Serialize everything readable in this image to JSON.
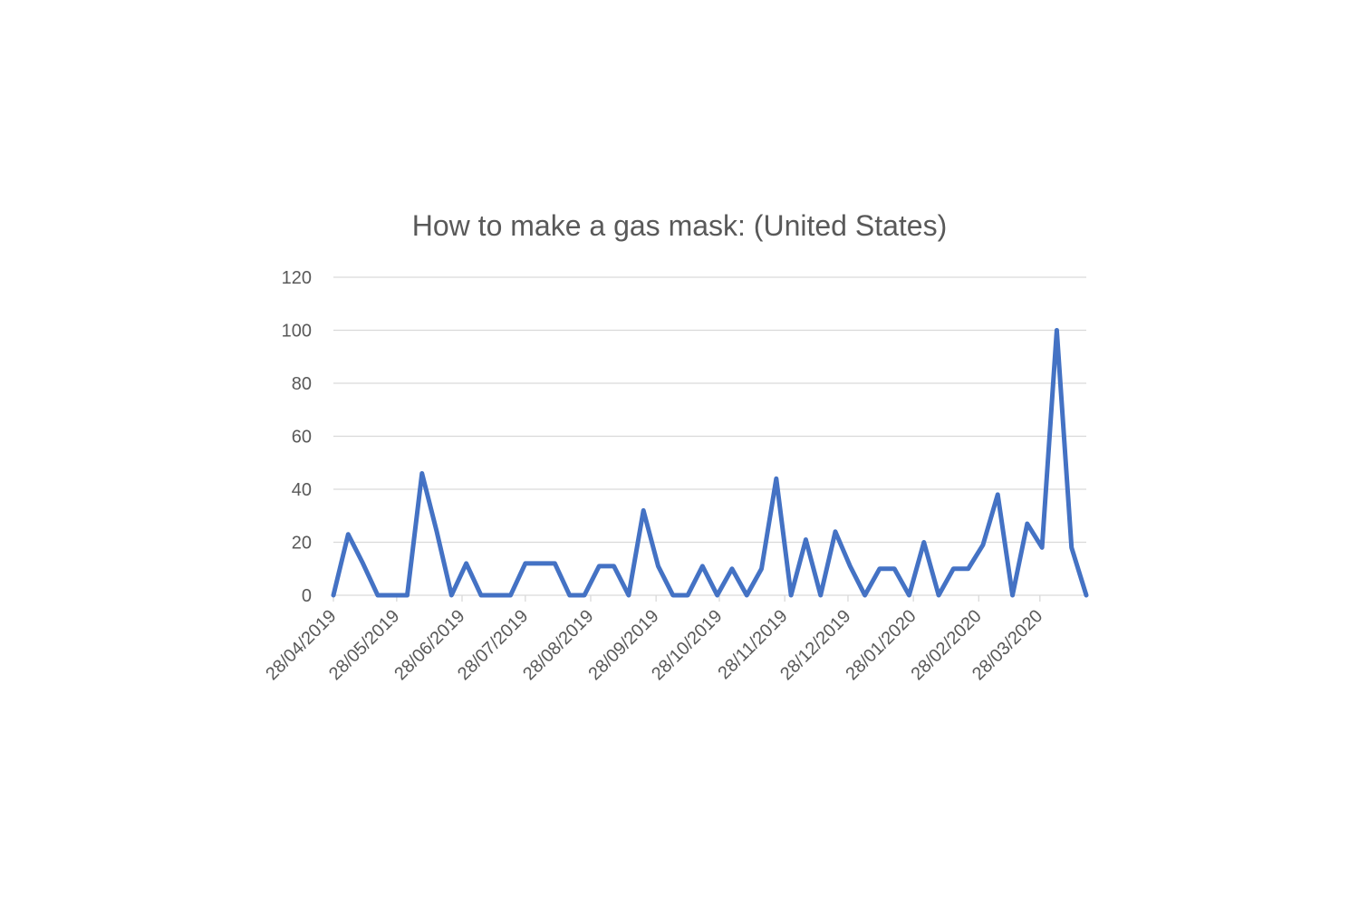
{
  "chart_data": {
    "type": "line",
    "title": "How to make a gas mask: (United States)",
    "xlabel": "",
    "ylabel": "",
    "ylim": [
      0,
      120
    ],
    "y_ticks": [
      "0",
      "20",
      "40",
      "60",
      "80",
      "100",
      "120"
    ],
    "grid": true,
    "legend": "none",
    "line_color": "#4472c4",
    "x_tick_labels": [
      "28/04/2019",
      "28/05/2019",
      "28/06/2019",
      "28/07/2019",
      "28/08/2019",
      "28/09/2019",
      "28/10/2019",
      "28/11/2019",
      "28/12/2019",
      "28/01/2020",
      "28/02/2020",
      "28/03/2020"
    ],
    "x_range": [
      "2019-04-28",
      "2020-04-19"
    ],
    "series": [
      {
        "x": [
          "2019-04-28",
          "2019-05-05",
          "2019-05-12",
          "2019-05-19",
          "2019-05-26",
          "2019-06-02",
          "2019-06-09",
          "2019-06-16",
          "2019-06-23",
          "2019-06-30",
          "2019-07-07",
          "2019-07-14",
          "2019-07-21",
          "2019-07-28",
          "2019-08-04",
          "2019-08-11",
          "2019-08-18",
          "2019-08-25",
          "2019-09-01",
          "2019-09-08",
          "2019-09-15",
          "2019-09-22",
          "2019-09-29",
          "2019-10-06",
          "2019-10-13",
          "2019-10-20",
          "2019-10-27",
          "2019-11-03",
          "2019-11-10",
          "2019-11-17",
          "2019-11-24",
          "2019-12-01",
          "2019-12-08",
          "2019-12-15",
          "2019-12-22",
          "2019-12-29",
          "2020-01-05",
          "2020-01-12",
          "2020-01-19",
          "2020-01-26",
          "2020-02-02",
          "2020-02-09",
          "2020-02-16",
          "2020-02-23",
          "2020-03-01",
          "2020-03-08",
          "2020-03-15",
          "2020-03-22",
          "2020-03-29",
          "2020-04-05",
          "2020-04-12",
          "2020-04-19"
        ],
        "values": [
          0,
          23,
          12,
          0,
          0,
          0,
          46,
          24,
          0,
          12,
          0,
          0,
          0,
          12,
          12,
          12,
          0,
          0,
          11,
          11,
          0,
          32,
          11,
          0,
          0,
          11,
          0,
          10,
          0,
          10,
          44,
          0,
          21,
          0,
          24,
          11,
          0,
          10,
          10,
          0,
          20,
          0,
          10,
          10,
          19,
          38,
          0,
          27,
          18,
          100,
          18,
          0
        ]
      }
    ]
  }
}
